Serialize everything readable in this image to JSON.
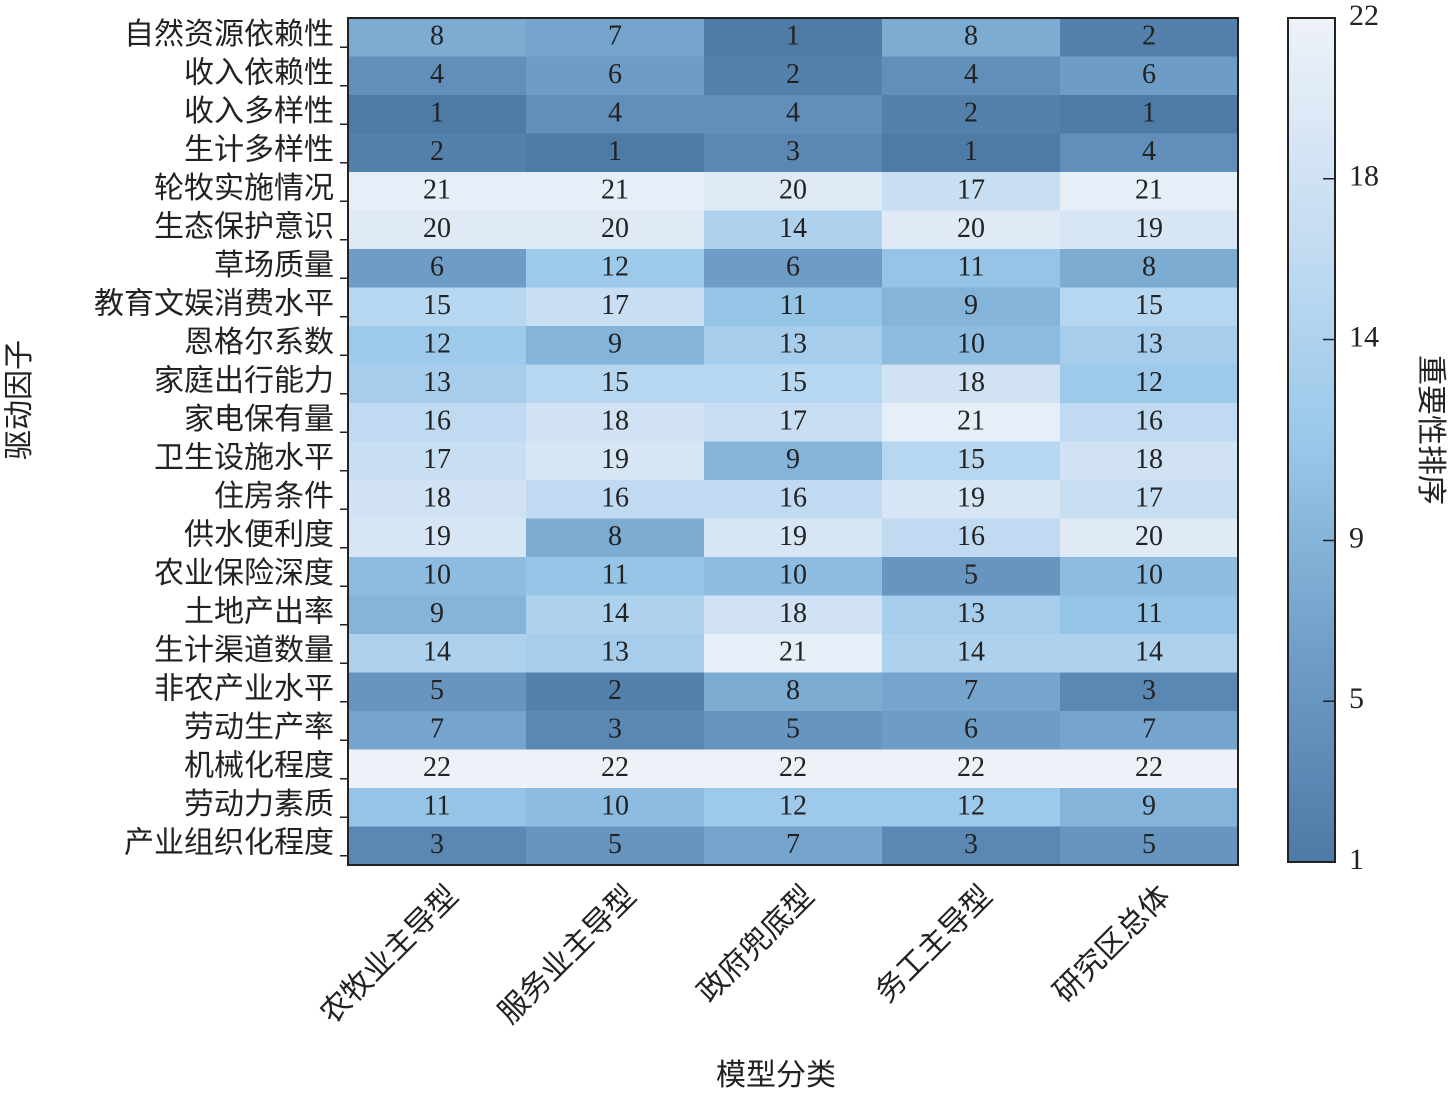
{
  "chart_data": {
    "type": "heatmap",
    "xlabel": "模型分类",
    "ylabel": "驱动因子",
    "colorbar_label": "重要性排序",
    "x_categories": [
      "农牧业主导型",
      "服务业主导型",
      "政府兜底型",
      "务工主导型",
      "研究区总体"
    ],
    "y_categories": [
      "自然资源依赖性",
      "收入依赖性",
      "收入多样性",
      "生计多样性",
      "轮牧实施情况",
      "生态保护意识",
      "草场质量",
      "教育文娱消费水平",
      "恩格尔系数",
      "家庭出行能力",
      "家电保有量",
      "卫生设施水平",
      "住房条件",
      "供水便利度",
      "农业保险深度",
      "土地产出率",
      "生计渠道数量",
      "非农产业水平",
      "劳动生产率",
      "机械化程度",
      "劳动力素质",
      "产业组织化程度"
    ],
    "values": [
      [
        8,
        7,
        1,
        8,
        2
      ],
      [
        4,
        6,
        2,
        4,
        6
      ],
      [
        1,
        4,
        4,
        2,
        1
      ],
      [
        2,
        1,
        3,
        1,
        4
      ],
      [
        21,
        21,
        20,
        17,
        21
      ],
      [
        20,
        20,
        14,
        20,
        19
      ],
      [
        6,
        12,
        6,
        11,
        8
      ],
      [
        15,
        17,
        11,
        9,
        15
      ],
      [
        12,
        9,
        13,
        10,
        13
      ],
      [
        13,
        15,
        15,
        18,
        12
      ],
      [
        16,
        18,
        17,
        21,
        16
      ],
      [
        17,
        19,
        9,
        15,
        18
      ],
      [
        18,
        16,
        16,
        19,
        17
      ],
      [
        19,
        8,
        19,
        16,
        20
      ],
      [
        10,
        11,
        10,
        5,
        10
      ],
      [
        9,
        14,
        18,
        13,
        11
      ],
      [
        14,
        13,
        21,
        14,
        14
      ],
      [
        5,
        2,
        8,
        7,
        3
      ],
      [
        7,
        3,
        5,
        6,
        7
      ],
      [
        22,
        22,
        22,
        22,
        22
      ],
      [
        11,
        10,
        12,
        12,
        9
      ],
      [
        3,
        5,
        7,
        3,
        5
      ]
    ],
    "zlim": [
      1,
      22
    ],
    "zticks": [
      1,
      5,
      9,
      14,
      18,
      22
    ],
    "colorscale": [
      "#4e7aa6",
      "#6f9ec8",
      "#99c8ea",
      "#c6ddf2",
      "#eef2f8"
    ]
  }
}
